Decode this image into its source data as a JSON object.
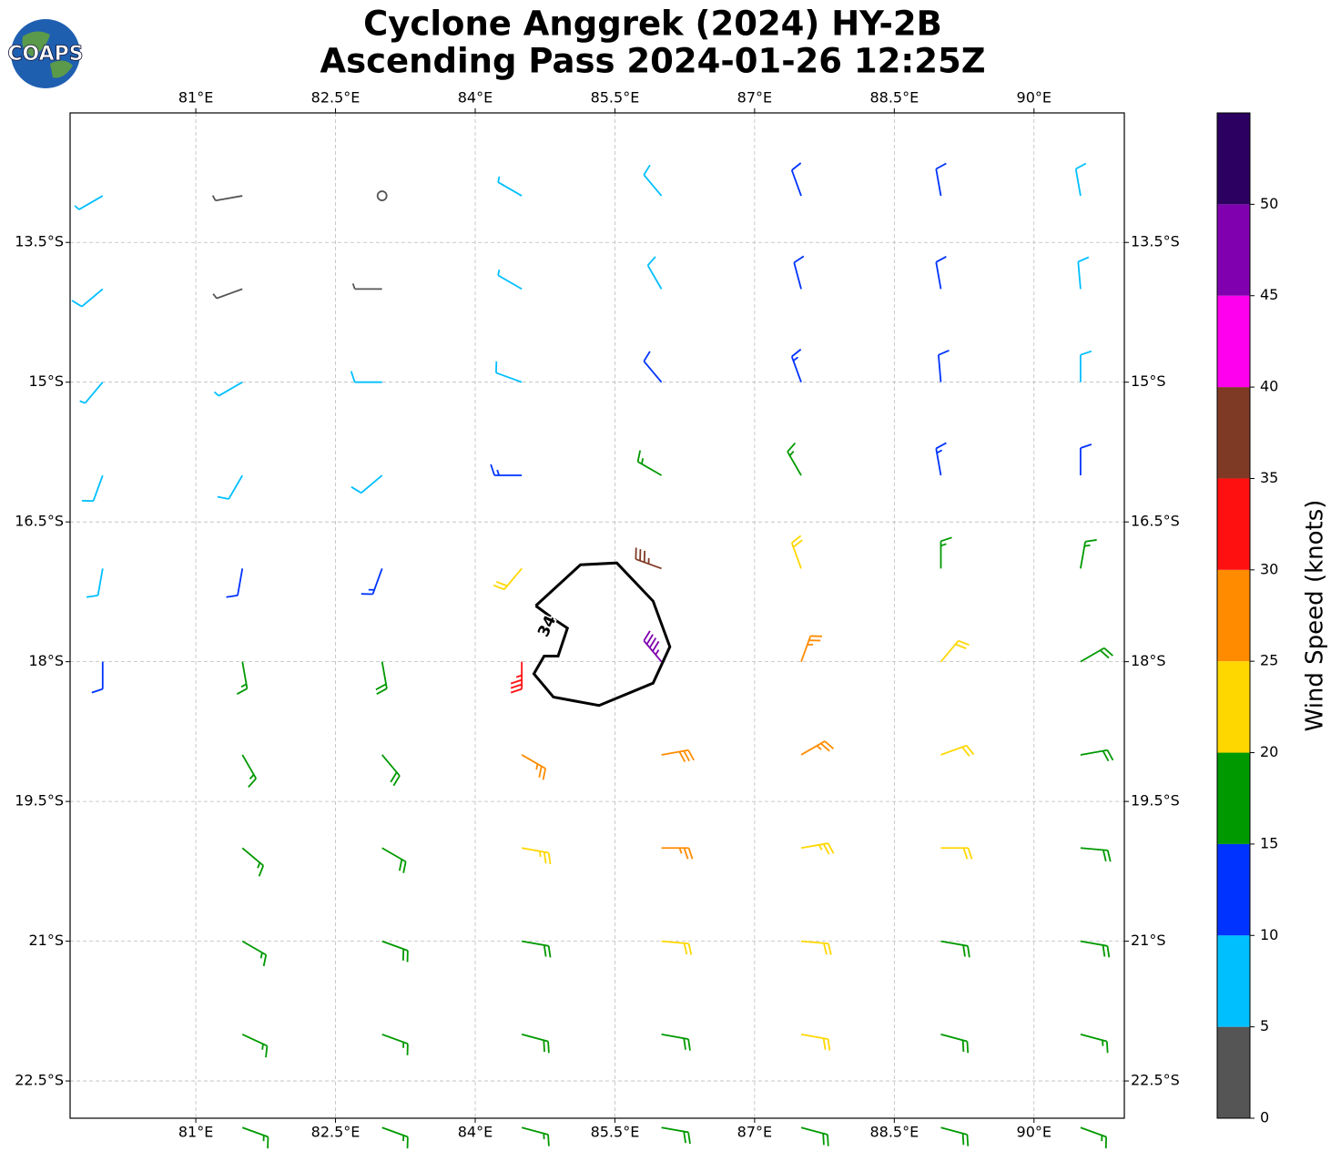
{
  "chart_data": {
    "type": "wind-barbs",
    "title": [
      "Cyclone Anggrek (2024) HY-2B",
      "Ascending Pass 2024-01-26 12:25Z"
    ],
    "logo": "COAPS",
    "xlim": [
      79.65,
      90.97
    ],
    "ylim": [
      -22.9,
      -12.11
    ],
    "xticks": [
      {
        "value": 81,
        "label": "81°E"
      },
      {
        "value": 82.5,
        "label": "82.5°E"
      },
      {
        "value": 84,
        "label": "84°E"
      },
      {
        "value": 85.5,
        "label": "85.5°E"
      },
      {
        "value": 87,
        "label": "87°E"
      },
      {
        "value": 88.5,
        "label": "88.5°E"
      },
      {
        "value": 90,
        "label": "90°E"
      }
    ],
    "yticks": [
      {
        "value": -13.5,
        "label": "13.5°S"
      },
      {
        "value": -15,
        "label": "15°S"
      },
      {
        "value": -16.5,
        "label": "16.5°S"
      },
      {
        "value": -18,
        "label": "18°S"
      },
      {
        "value": -19.5,
        "label": "19.5°S"
      },
      {
        "value": -21,
        "label": "21°S"
      },
      {
        "value": -22.5,
        "label": "22.5°S"
      }
    ],
    "grid": true,
    "wind": {
      "lons": [
        80,
        81.5,
        83,
        84.5,
        86,
        87.5,
        89,
        90.5
      ],
      "lats": [
        -13,
        -14,
        -15,
        -16,
        -17,
        -18,
        -19,
        -20,
        -21,
        -22,
        -23
      ],
      "speed": [
        [
          7,
          3,
          2,
          5,
          8,
          11,
          12,
          8
        ],
        [
          8,
          4,
          3,
          7,
          9,
          11,
          12,
          9
        ],
        [
          7,
          6,
          8,
          9,
          12,
          13,
          12,
          9
        ],
        [
          8,
          8,
          9,
          13,
          17,
          16,
          14,
          12
        ],
        [
          9,
          11,
          13,
          22,
          37,
          21,
          16,
          16
        ],
        [
          11,
          16,
          18,
          33,
          45,
          26,
          21,
          18
        ],
        [
          null,
          17,
          19,
          27,
          28,
          26,
          22,
          19
        ],
        [
          null,
          17,
          19,
          23,
          26,
          24,
          21,
          18
        ],
        [
          null,
          17,
          18,
          19,
          22,
          22,
          19,
          18
        ],
        [
          null,
          16,
          17,
          18,
          19,
          21,
          19,
          17
        ],
        [
          null,
          16,
          17,
          17,
          18,
          19,
          18,
          17
        ]
      ],
      "direction": [
        [
          240,
          260,
          270,
          300,
          320,
          340,
          350,
          350
        ],
        [
          230,
          250,
          270,
          300,
          330,
          345,
          350,
          355
        ],
        [
          220,
          240,
          270,
          290,
          320,
          340,
          355,
          0
        ],
        [
          200,
          210,
          230,
          270,
          300,
          330,
          350,
          0
        ],
        [
          190,
          190,
          200,
          220,
          290,
          340,
          0,
          10
        ],
        [
          180,
          170,
          170,
          180,
          320,
          20,
          40,
          60
        ],
        [
          null,
          150,
          140,
          120,
          80,
          60,
          70,
          80
        ],
        [
          null,
          130,
          120,
          100,
          90,
          80,
          90,
          95
        ],
        [
          null,
          120,
          110,
          100,
          95,
          95,
          100,
          100
        ],
        [
          null,
          115,
          110,
          105,
          100,
          100,
          105,
          105
        ],
        [
          null,
          110,
          110,
          105,
          100,
          105,
          105,
          110
        ]
      ]
    },
    "contour": {
      "level": 34,
      "lon": [
        84.65,
        85.13,
        85.52,
        85.91,
        86.09,
        85.91,
        85.33,
        84.84,
        84.63,
        84.74,
        84.89,
        84.99,
        84.84,
        84.65
      ],
      "lat": [
        -17.4,
        -16.96,
        -16.94,
        -17.35,
        -17.84,
        -18.23,
        -18.47,
        -18.38,
        -18.13,
        -17.94,
        -17.94,
        -17.64,
        -17.54,
        -17.4
      ]
    },
    "colorbar": {
      "label": "Wind Speed (knots)",
      "lim": [
        0,
        55
      ],
      "ticks": [
        0,
        5,
        10,
        15,
        20,
        25,
        30,
        35,
        40,
        45,
        50
      ],
      "colors": [
        "#555555",
        "#00bfff",
        "#0033ff",
        "#009900",
        "#ffd700",
        "#ff8c00",
        "#ff1010",
        "#7f3a25",
        "#ff00ee",
        "#8000b0",
        "#2b0060"
      ]
    }
  }
}
